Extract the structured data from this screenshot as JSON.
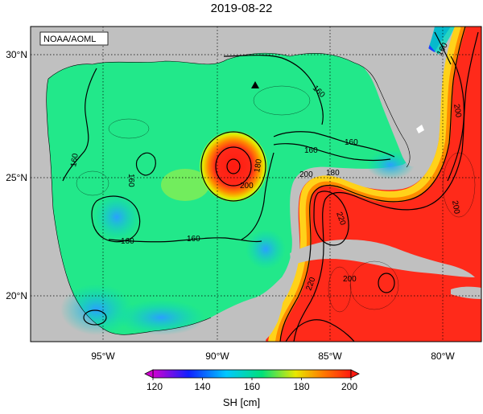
{
  "title": "2019-08-22",
  "credit": "NOAA/AOML",
  "map": {
    "lon_ticks": [
      "95°W",
      "90°W",
      "85°W",
      "80°W"
    ],
    "lat_ticks": [
      "30°N",
      "25°N",
      "20°N"
    ],
    "contour_labels": [
      "160",
      "160",
      "160",
      "160",
      "160",
      "160",
      "160",
      "160",
      "180",
      "180",
      "200",
      "200",
      "200",
      "200",
      "200",
      "220",
      "220"
    ],
    "marker": "triangle",
    "colors": {
      "land": "#c0c0c0",
      "low": "#1e90ff",
      "mid": "#00e07a",
      "high": "#ff2a1a"
    }
  },
  "colorbar": {
    "label": "SH [cm]",
    "ticks": [
      "120",
      "140",
      "160",
      "180",
      "200"
    ],
    "min": 120,
    "max": 200,
    "colors": [
      "#d000d0",
      "#1020ff",
      "#00c8ff",
      "#00e07a",
      "#e8e800",
      "#ff7a00",
      "#ff1a10"
    ]
  }
}
